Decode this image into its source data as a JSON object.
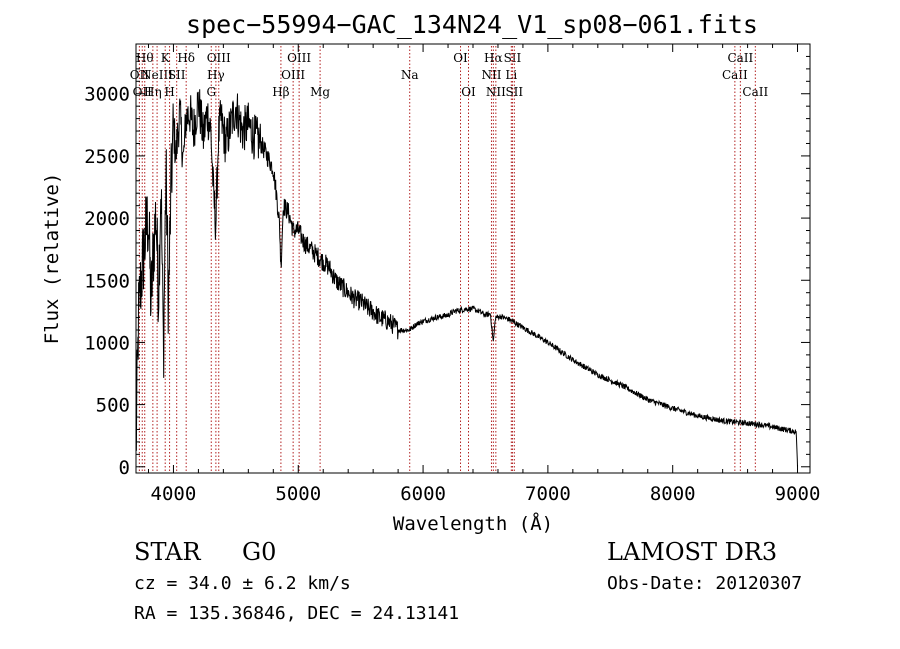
{
  "chart_data": {
    "type": "line",
    "title": "spec−55994−GAC_134N24_V1_sp08−061.fits",
    "xlabel": "Wavelength (Å)",
    "ylabel": "Flux (relative)",
    "xlim": [
      3700,
      9100
    ],
    "ylim": [
      -50,
      3400
    ],
    "xticks": [
      4000,
      5000,
      6000,
      7000,
      8000,
      9000
    ],
    "yticks": [
      0,
      500,
      1000,
      1500,
      2000,
      2500,
      3000
    ],
    "grid": false,
    "series": [
      {
        "name": "flux",
        "x": [
          3700,
          3720,
          3740,
          3760,
          3780,
          3800,
          3820,
          3840,
          3860,
          3880,
          3900,
          3920,
          3940,
          3960,
          3980,
          4000,
          4020,
          4050,
          4080,
          4100,
          4130,
          4160,
          4200,
          4240,
          4270,
          4300,
          4320,
          4340,
          4360,
          4380,
          4420,
          4460,
          4500,
          4550,
          4600,
          4650,
          4700,
          4750,
          4800,
          4830,
          4850,
          4861,
          4880,
          4920,
          4960,
          5000,
          5050,
          5100,
          5150,
          5200,
          5250,
          5300,
          5350,
          5400,
          5450,
          5500,
          5550,
          5600,
          5650,
          5700,
          5750,
          5800,
          5850,
          5890,
          5950,
          6000,
          6100,
          6200,
          6250,
          6300,
          6350,
          6400,
          6450,
          6500,
          6540,
          6563,
          6580,
          6620,
          6700,
          6800,
          6900,
          7000,
          7200,
          7400,
          7600,
          7800,
          8000,
          8200,
          8400,
          8500,
          8600,
          8700,
          8800,
          8900,
          8990,
          9000
        ],
        "values": [
          100,
          1200,
          1500,
          1700,
          1900,
          2000,
          1300,
          1750,
          2050,
          1400,
          2300,
          900,
          2400,
          1300,
          2200,
          2750,
          2500,
          2850,
          2450,
          2800,
          2850,
          2700,
          2950,
          2650,
          2850,
          2700,
          2200,
          1950,
          2650,
          2800,
          2600,
          2750,
          2900,
          2700,
          2750,
          2650,
          2600,
          2500,
          2400,
          2150,
          1950,
          1600,
          2100,
          2050,
          1900,
          1900,
          1800,
          1750,
          1700,
          1650,
          1600,
          1500,
          1450,
          1400,
          1350,
          1330,
          1280,
          1250,
          1200,
          1180,
          1150,
          1100,
          1100,
          1100,
          1150,
          1170,
          1200,
          1220,
          1250,
          1260,
          1270,
          1270,
          1250,
          1220,
          1230,
          1000,
          1200,
          1210,
          1180,
          1120,
          1060,
          1000,
          860,
          740,
          650,
          540,
          470,
          410,
          370,
          360,
          350,
          340,
          320,
          300,
          280,
          0
        ]
      }
    ],
    "spectral_lines": [
      {
        "wave": 3727,
        "label": "OII",
        "row": 2
      },
      {
        "wave": 3750,
        "label": "OII",
        "row": 3
      },
      {
        "wave": 3770,
        "label": "Hθ",
        "row": 1
      },
      {
        "wave": 3835,
        "label": "Hη",
        "row": 3
      },
      {
        "wave": 3869,
        "label": "NeIII",
        "row": 2
      },
      {
        "wave": 3934,
        "label": "K",
        "row": 1
      },
      {
        "wave": 3969,
        "label": "H",
        "row": 3
      },
      {
        "wave": 4026,
        "label": "SII",
        "row": 2
      },
      {
        "wave": 4102,
        "label": "Hδ",
        "row": 1
      },
      {
        "wave": 4303,
        "label": "G",
        "row": 3
      },
      {
        "wave": 4340,
        "label": "Hγ",
        "row": 2
      },
      {
        "wave": 4363,
        "label": "OIII",
        "row": 1
      },
      {
        "wave": 4861,
        "label": "Hβ",
        "row": 3
      },
      {
        "wave": 4959,
        "label": "OIII",
        "row": 2
      },
      {
        "wave": 5007,
        "label": "OIII",
        "row": 1
      },
      {
        "wave": 5175,
        "label": "Mg",
        "row": 3
      },
      {
        "wave": 5893,
        "label": "Na",
        "row": 2
      },
      {
        "wave": 6300,
        "label": "OI",
        "row": 1
      },
      {
        "wave": 6364,
        "label": "OI",
        "row": 3
      },
      {
        "wave": 6548,
        "label": "NII",
        "row": 2
      },
      {
        "wave": 6563,
        "label": "Hα",
        "row": 1
      },
      {
        "wave": 6583,
        "label": "NII",
        "row": 3
      },
      {
        "wave": 6707,
        "label": "Li",
        "row": 2
      },
      {
        "wave": 6716,
        "label": "SII",
        "row": 1
      },
      {
        "wave": 6731,
        "label": "SII",
        "row": 3
      },
      {
        "wave": 8498,
        "label": "CaII",
        "row": 2
      },
      {
        "wave": 8542,
        "label": "CaII",
        "row": 1
      },
      {
        "wave": 8662,
        "label": "CaII",
        "row": 3
      }
    ]
  },
  "info": {
    "object_class": "STAR",
    "subclass": "G0",
    "survey": "LAMOST DR3",
    "redshift": "cz = 34.0 ± 6.2 km/s",
    "obs_date": "Obs-Date: 20120307",
    "coords": "RA = 135.36846, DEC =  24.13141"
  }
}
